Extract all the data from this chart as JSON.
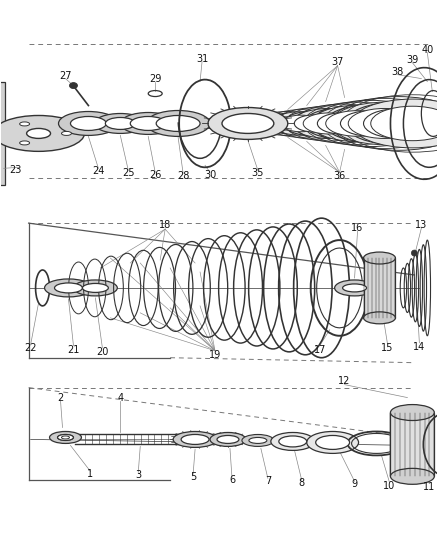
{
  "bg_color": "#ffffff",
  "fig_width": 4.38,
  "fig_height": 5.33,
  "dpi": 100,
  "gray": "#333333",
  "lgray": "#888888",
  "dgray": "#111111",
  "fillgray": "#cccccc",
  "darkfill": "#555555"
}
